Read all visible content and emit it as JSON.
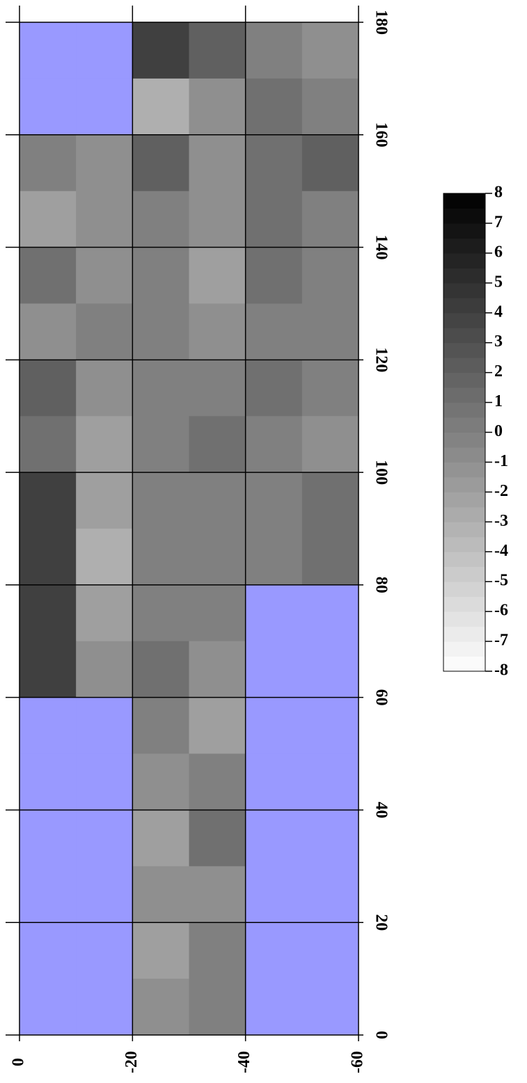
{
  "chart_data": {
    "type": "heatmap",
    "xlim": [
      0,
      -60
    ],
    "xticks": [
      0,
      -20,
      -40,
      -60
    ],
    "ylim": [
      0,
      180
    ],
    "yticks": [
      0,
      20,
      40,
      60,
      80,
      100,
      120,
      140,
      160,
      180
    ],
    "zlim": [
      -8,
      8
    ],
    "colorbar_ticks": [
      8,
      7,
      6,
      5,
      4,
      3,
      2,
      1,
      0,
      -1,
      -2,
      -3,
      -4,
      -5,
      -6,
      -7,
      -8
    ],
    "missing_color": "#9999ff",
    "grid": true,
    "z": [
      [
        null,
        null,
        4,
        2,
        0,
        -1
      ],
      [
        null,
        null,
        -3,
        -1,
        1,
        0
      ],
      [
        0,
        -1,
        2,
        -1,
        1,
        2
      ],
      [
        -2,
        -1,
        0,
        -1,
        1,
        0
      ],
      [
        1,
        -1,
        0,
        -2,
        1,
        0
      ],
      [
        -1,
        0,
        0,
        -1,
        0,
        0
      ],
      [
        2,
        -1,
        0,
        0,
        1,
        0
      ],
      [
        1,
        -2,
        0,
        1,
        0,
        -1
      ],
      [
        4,
        -2,
        0,
        0,
        0,
        1
      ],
      [
        4,
        -3,
        0,
        0,
        0,
        1
      ],
      [
        4,
        -2,
        0,
        0,
        null,
        null
      ],
      [
        4,
        -1,
        1,
        -1,
        null,
        null
      ],
      [
        null,
        null,
        0,
        -2,
        null,
        null
      ],
      [
        null,
        null,
        -1,
        0,
        null,
        null
      ],
      [
        null,
        null,
        -2,
        1,
        null,
        null
      ],
      [
        null,
        null,
        -1,
        -1,
        null,
        null
      ],
      [
        null,
        null,
        -2,
        0,
        null,
        null
      ],
      [
        null,
        null,
        -1,
        0,
        null,
        null
      ]
    ]
  }
}
